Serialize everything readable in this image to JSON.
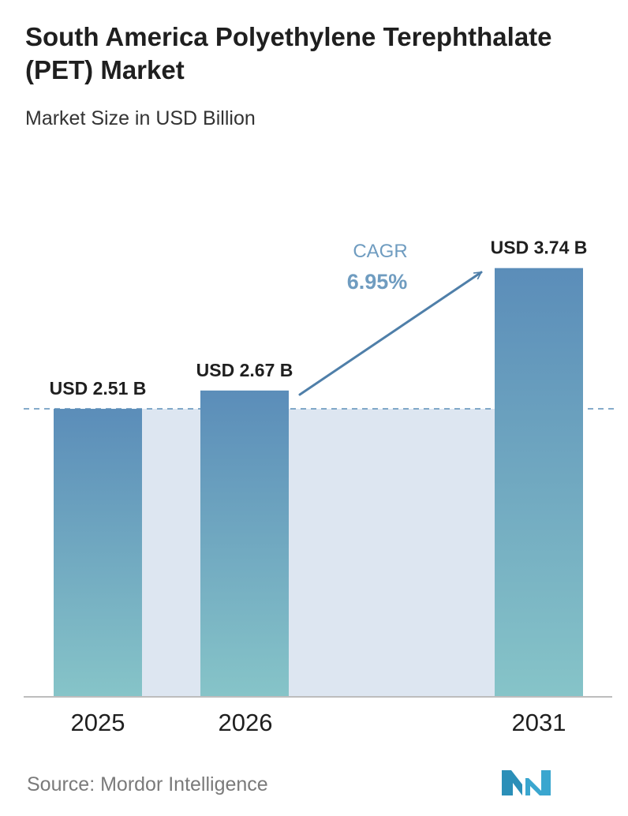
{
  "title": "South America Polyethylene Terephthalate (PET) Market",
  "subtitle": "Market Size in USD Billion",
  "source": "Source: Mordor Intelligence",
  "cagr": {
    "label": "CAGR",
    "value": "6.95%"
  },
  "colors": {
    "bar_top": "#5b8db9",
    "bar_bottom": "#86c4c8",
    "band": "#dde6f1",
    "dash": "#5d8fb8",
    "cagr": "#6f9cc0",
    "arrow": "#4f7fa9",
    "axis": "#bdbdbd"
  },
  "chart_data": {
    "type": "bar",
    "categories": [
      "2025",
      "2026",
      "2031"
    ],
    "values": [
      2.51,
      2.67,
      3.74
    ],
    "value_labels": [
      "USD 2.51 B",
      "USD 2.67 B",
      "USD 3.74 B"
    ],
    "title": "South America Polyethylene Terephthalate (PET) Market",
    "subtitle": "Market Size in USD Billion",
    "xlabel": "",
    "ylabel": "",
    "grid": false
  }
}
